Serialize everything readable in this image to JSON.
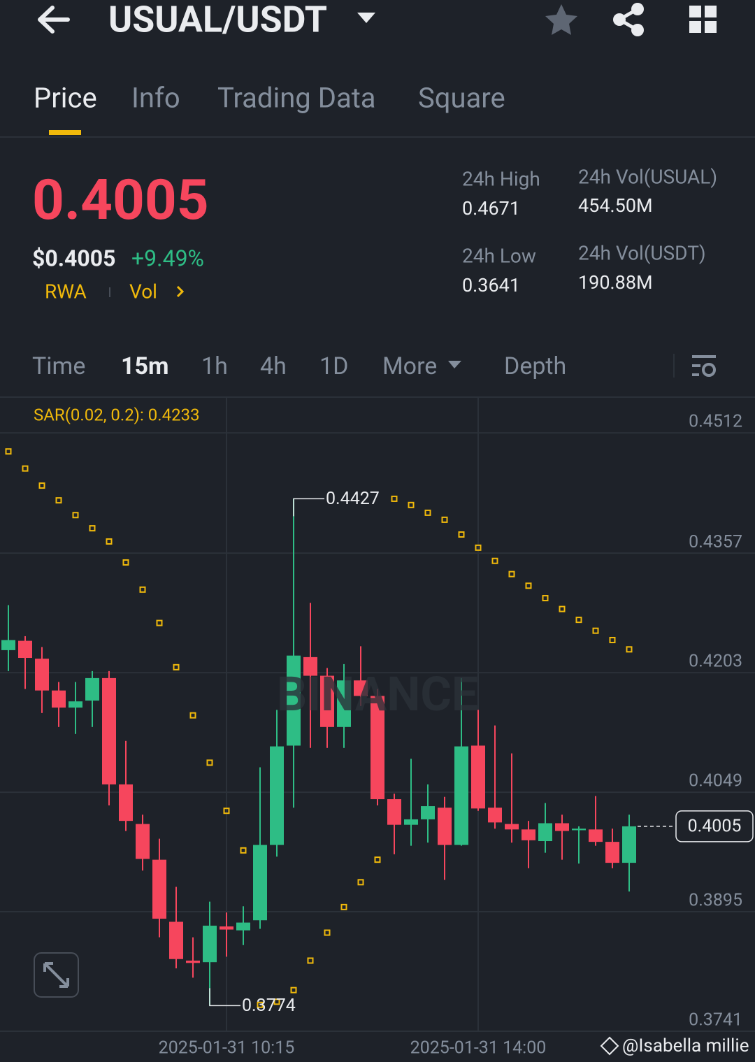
{
  "header": {
    "title": "USUAL/USDT"
  },
  "tabs": [
    "Price",
    "Info",
    "Trading Data",
    "Square"
  ],
  "summary": {
    "price": "0.4005",
    "usd_price": "$0.4005",
    "change": "+9.49%",
    "tags": [
      "RWA",
      "Vol"
    ],
    "stats": [
      {
        "label": "24h High",
        "value": "0.4671"
      },
      {
        "label": "24h Vol(USUAL)",
        "value": "454.50M"
      },
      {
        "label": "24h Low",
        "value": "0.3641"
      },
      {
        "label": "24h Vol(USDT)",
        "value": "190.88M"
      }
    ]
  },
  "intervals": [
    "Time",
    "15m",
    "1h",
    "4h",
    "1D",
    "More",
    "Depth"
  ],
  "chart_data": {
    "type": "candlestick",
    "sar_label": "SAR(0.02, 0.2): 0.4233",
    "watermark": "BINANCE",
    "categories": [
      null,
      null,
      null,
      null,
      null,
      null,
      null,
      null,
      null,
      null,
      null,
      null,
      null,
      "2025-01-31 10:15",
      null,
      null,
      null,
      null,
      null,
      null,
      null,
      null,
      null,
      null,
      null,
      null,
      null,
      null,
      "2025-01-31 14:00",
      null,
      null,
      null,
      null,
      null,
      null,
      null,
      null,
      null
    ],
    "open": [
      0.4232,
      0.4244,
      0.4221,
      0.418,
      0.4158,
      0.4167,
      0.4196,
      0.4059,
      0.4008,
      0.3962,
      0.3882,
      0.3832,
      0.383,
      0.3876,
      0.3871,
      0.3884,
      0.3981,
      0.4109,
      0.4223,
      0.4199,
      0.4133,
      0.4193,
      0.4173,
      0.404,
      0.4007,
      0.4014,
      0.4029,
      0.3981,
      0.4109,
      0.4029,
      0.4008,
      0.4001,
      0.3986,
      0.4009,
      0.4,
      0.4001,
      0.3985,
      0.3958
    ],
    "high": [
      0.429,
      0.425,
      0.4236,
      0.4191,
      0.4191,
      0.4205,
      0.4205,
      0.4115,
      0.402,
      0.3989,
      0.3927,
      0.3862,
      0.3908,
      0.3894,
      0.3902,
      0.4081,
      0.4155,
      0.4427,
      0.4293,
      0.4209,
      0.4214,
      0.4237,
      0.4182,
      0.4047,
      0.4092,
      0.4059,
      0.4043,
      0.4196,
      0.4155,
      0.4135,
      0.4099,
      0.4012,
      0.4035,
      0.402,
      0.4005,
      0.4044,
      0.4002,
      0.402
    ],
    "low": [
      0.4205,
      0.4182,
      0.4151,
      0.4133,
      0.4124,
      0.4133,
      0.4032,
      0.3999,
      0.3948,
      0.3862,
      0.3822,
      0.381,
      0.3774,
      0.3837,
      0.3852,
      0.3873,
      0.3966,
      0.4029,
      0.4106,
      0.4106,
      0.4106,
      0.416,
      0.4032,
      0.3969,
      0.398,
      0.3984,
      0.3936,
      0.398,
      0.4025,
      0.4002,
      0.3984,
      0.3951,
      0.3971,
      0.3962,
      0.3957,
      0.398,
      0.3951,
      0.3921
    ],
    "close": [
      0.4245,
      0.4222,
      0.418,
      0.4158,
      0.4166,
      0.4196,
      0.4059,
      0.4012,
      0.3963,
      0.3886,
      0.3834,
      0.3829,
      0.3877,
      0.3872,
      0.3881,
      0.3981,
      0.4108,
      0.4225,
      0.4199,
      0.4133,
      0.4193,
      0.4173,
      0.404,
      0.4007,
      0.4014,
      0.4031,
      0.3981,
      0.4108,
      0.4028,
      0.401,
      0.4001,
      0.3987,
      0.4009,
      0.3999,
      0.4002,
      0.3985,
      0.3958,
      0.4005
    ],
    "sar": [
      0.4488,
      0.4466,
      0.4444,
      0.4425,
      0.4406,
      0.4389,
      0.4372,
      0.4345,
      0.431,
      0.4267,
      0.421,
      0.4148,
      0.4087,
      0.4025,
      0.3974,
      0.3775,
      0.3779,
      0.3794,
      0.3832,
      0.3868,
      0.3901,
      0.3933,
      0.3962,
      0.4427,
      0.4419,
      0.4409,
      0.44,
      0.4381,
      0.4364,
      0.4347,
      0.433,
      0.4315,
      0.4299,
      0.4285,
      0.4271,
      0.4257,
      0.4245,
      0.4233
    ],
    "up_color": "#2ebd85",
    "down_color": "#f6465d",
    "sar_color": "#f0b90b",
    "annotations": {
      "high": 0.4427,
      "low": 0.3774,
      "last": 0.4005
    },
    "ylim": [
      0.3741,
      0.4558
    ],
    "yticks": [
      0.4512,
      0.4357,
      0.4203,
      0.4049,
      0.3895,
      0.3741
    ],
    "grid": true
  },
  "footer": {
    "credit": "@Isabella millie"
  }
}
